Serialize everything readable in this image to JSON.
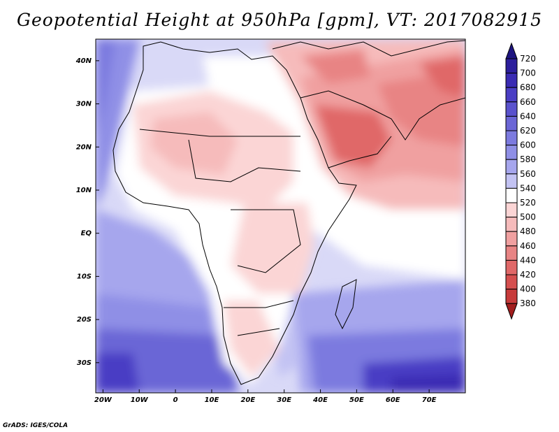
{
  "title": "Geopotential Height at 950hPa [gpm], VT: 2017082915",
  "credit": "GrADS: IGES/COLA",
  "map": {
    "lon_range": [
      -22,
      80
    ],
    "lat_range": [
      -37,
      45
    ],
    "lon_ticks": [
      {
        "value": -20,
        "label": "20W"
      },
      {
        "value": -10,
        "label": "10W"
      },
      {
        "value": 0,
        "label": "0"
      },
      {
        "value": 10,
        "label": "10E"
      },
      {
        "value": 20,
        "label": "20E"
      },
      {
        "value": 30,
        "label": "30E"
      },
      {
        "value": 40,
        "label": "40E"
      },
      {
        "value": 50,
        "label": "50E"
      },
      {
        "value": 60,
        "label": "60E"
      },
      {
        "value": 70,
        "label": "70E"
      }
    ],
    "lat_ticks": [
      {
        "value": 40,
        "label": "40N"
      },
      {
        "value": 30,
        "label": "30N"
      },
      {
        "value": 20,
        "label": "20N"
      },
      {
        "value": 10,
        "label": "10N"
      },
      {
        "value": 0,
        "label": "EQ"
      },
      {
        "value": -10,
        "label": "10S"
      },
      {
        "value": -20,
        "label": "20S"
      },
      {
        "value": -30,
        "label": "30S"
      }
    ]
  },
  "colorbar": {
    "levels": [
      "720",
      "700",
      "680",
      "660",
      "640",
      "620",
      "600",
      "580",
      "560",
      "540",
      "520",
      "500",
      "480",
      "460",
      "440",
      "420",
      "400",
      "380"
    ],
    "colors": [
      "#2c1e9c",
      "#3a2bb3",
      "#4a3ec4",
      "#5a52cd",
      "#6b66d6",
      "#7c7adf",
      "#8f8fe6",
      "#a6a6ed",
      "#c3c3f3",
      "#ffffff",
      "#fbd5d5",
      "#f6bbbb",
      "#f0a0a0",
      "#e88484",
      "#e06868",
      "#d54f4f",
      "#c73b3b",
      "#b82828"
    ],
    "top_color": "#1e1480",
    "bottom_color": "#a21e1e"
  }
}
